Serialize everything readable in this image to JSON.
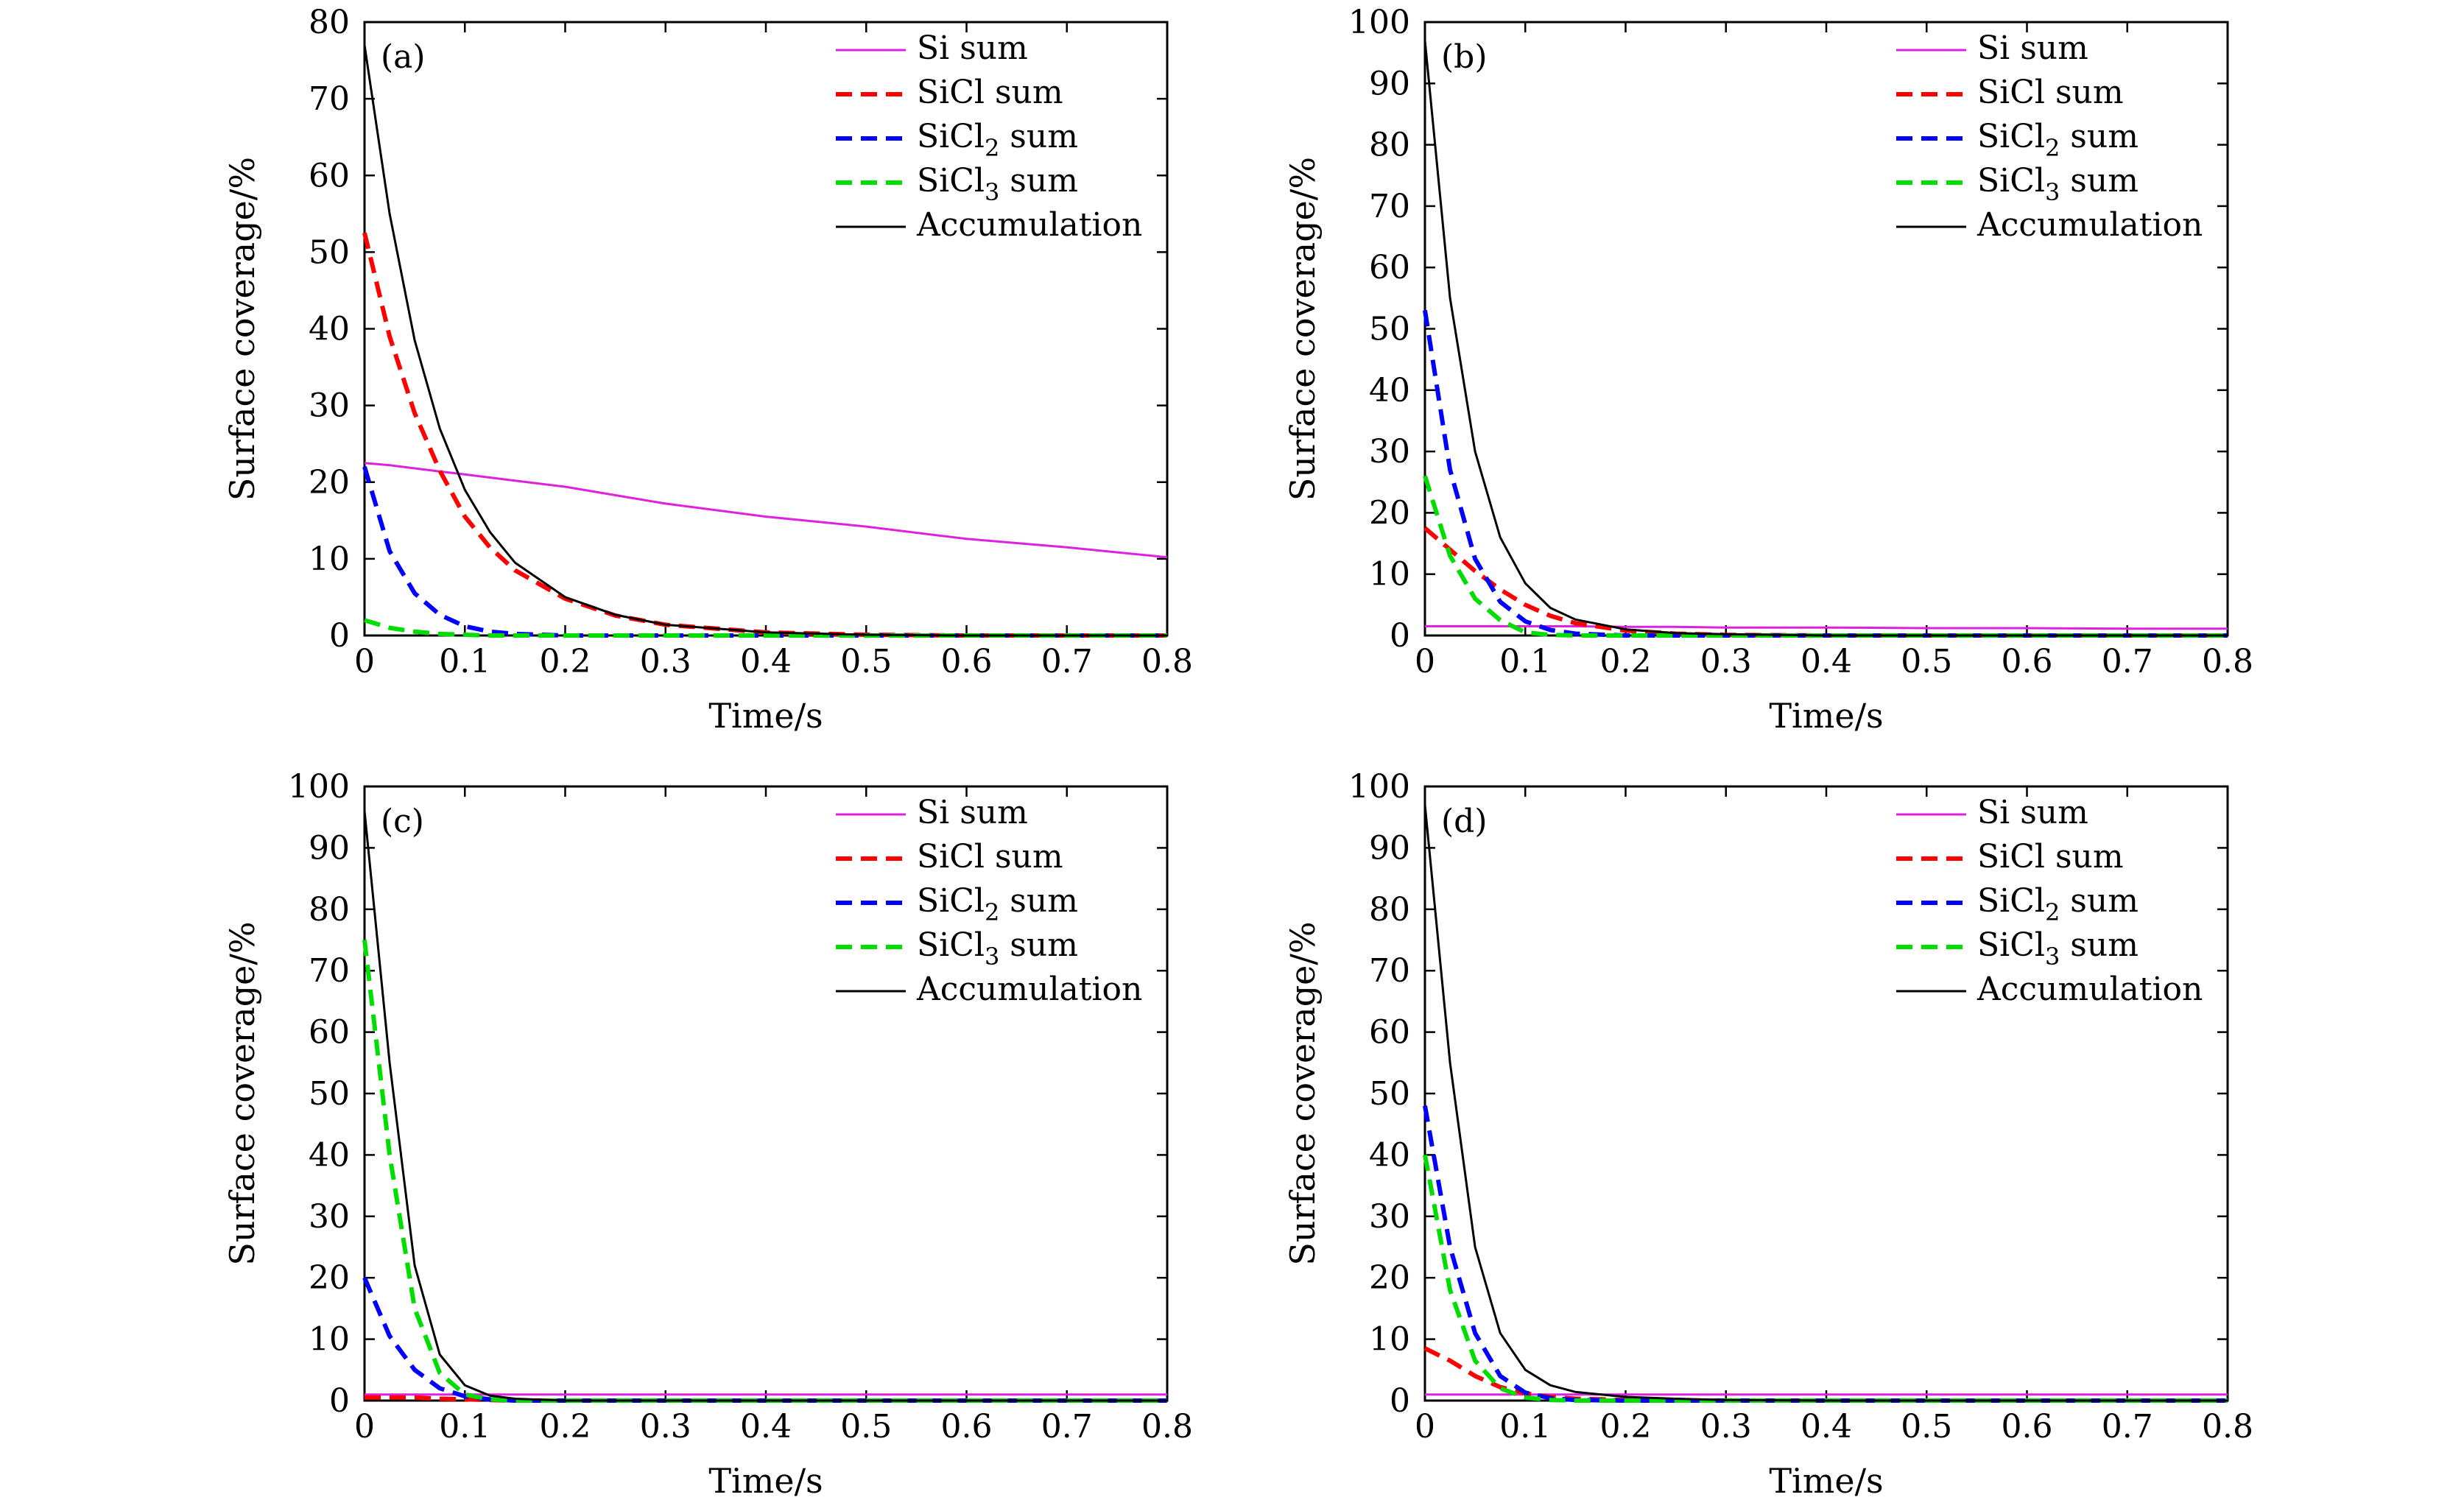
{
  "figure": {
    "background": "#ffffff"
  },
  "series_styles": [
    {
      "key": "si",
      "color": "#e020e0",
      "dash": "solid",
      "width": 3
    },
    {
      "key": "sicl",
      "color": "#ff0000",
      "dash": "dashed",
      "width": 6
    },
    {
      "key": "sicl2",
      "color": "#0000ff",
      "dash": "dashed",
      "width": 6
    },
    {
      "key": "sicl3",
      "color": "#00dd00",
      "dash": "dashed",
      "width": 6
    },
    {
      "key": "acc",
      "color": "#000000",
      "dash": "solid",
      "width": 3
    }
  ],
  "legend": [
    {
      "prefix": "Si sum",
      "sub": "",
      "suffix": ""
    },
    {
      "prefix": "SiCl sum",
      "sub": "",
      "suffix": ""
    },
    {
      "prefix": "SiCl",
      "sub": "2",
      "suffix": " sum"
    },
    {
      "prefix": "SiCl",
      "sub": "3",
      "suffix": " sum"
    },
    {
      "prefix": "Accumulation",
      "sub": "",
      "suffix": ""
    }
  ],
  "chart_data": [
    {
      "type": "line",
      "panel": "(a)",
      "xlabel": "Time/s",
      "ylabel": "Surface coverage/%",
      "xlim": [
        0,
        0.8
      ],
      "ylim": [
        0,
        80
      ],
      "xticks": [
        "0",
        "0.1",
        "0.2",
        "0.3",
        "0.4",
        "0.5",
        "0.6",
        "0.7",
        "0.8"
      ],
      "yticks": [
        "0",
        "10",
        "20",
        "30",
        "40",
        "50",
        "60",
        "70",
        "80"
      ],
      "legend_position": "top-right",
      "x": [
        0,
        0.025,
        0.05,
        0.075,
        0.1,
        0.125,
        0.15,
        0.2,
        0.25,
        0.3,
        0.4,
        0.5,
        0.6,
        0.7,
        0.8
      ],
      "series": [
        {
          "name": "Si sum",
          "values": [
            22.5,
            22.2,
            21.8,
            21.4,
            21.0,
            20.6,
            20.2,
            19.4,
            18.3,
            17.2,
            15.5,
            14.2,
            12.6,
            11.5,
            10.2
          ]
        },
        {
          "name": "SiCl sum",
          "values": [
            52.5,
            39.0,
            29.0,
            21.5,
            15.5,
            11.5,
            8.5,
            4.8,
            2.6,
            1.4,
            0.4,
            0.1,
            0,
            0,
            0
          ]
        },
        {
          "name": "SiCl2 sum",
          "values": [
            22.0,
            11.0,
            5.5,
            2.7,
            1.2,
            0.5,
            0.2,
            0,
            0,
            0,
            0,
            0,
            0,
            0,
            0
          ]
        },
        {
          "name": "SiCl3 sum",
          "values": [
            2.0,
            1.0,
            0.5,
            0.2,
            0.1,
            0,
            0,
            0,
            0,
            0,
            0,
            0,
            0,
            0,
            0
          ]
        },
        {
          "name": "Accumulation",
          "values": [
            77.0,
            55.0,
            38.5,
            27.0,
            19.0,
            13.5,
            9.5,
            5.0,
            2.7,
            1.4,
            0.4,
            0.1,
            0,
            0,
            0
          ]
        }
      ]
    },
    {
      "type": "line",
      "panel": "(b)",
      "xlabel": "Time/s",
      "ylabel": "Surface coverage/%",
      "xlim": [
        0,
        0.8
      ],
      "ylim": [
        0,
        100
      ],
      "xticks": [
        "0",
        "0.1",
        "0.2",
        "0.3",
        "0.4",
        "0.5",
        "0.6",
        "0.7",
        "0.8"
      ],
      "yticks": [
        "0",
        "10",
        "20",
        "30",
        "40",
        "50",
        "60",
        "70",
        "80",
        "90",
        "100"
      ],
      "legend_position": "top-right",
      "x": [
        0,
        0.025,
        0.05,
        0.075,
        0.1,
        0.125,
        0.15,
        0.2,
        0.25,
        0.3,
        0.4,
        0.5,
        0.6,
        0.7,
        0.8
      ],
      "series": [
        {
          "name": "Si sum",
          "values": [
            1.5,
            1.5,
            1.5,
            1.5,
            1.5,
            1.5,
            1.5,
            1.4,
            1.4,
            1.3,
            1.3,
            1.2,
            1.2,
            1.1,
            1.1
          ]
        },
        {
          "name": "SiCl sum",
          "values": [
            17.5,
            14.0,
            10.5,
            7.5,
            5.0,
            3.2,
            2.0,
            0.8,
            0.3,
            0.1,
            0,
            0,
            0,
            0,
            0
          ]
        },
        {
          "name": "SiCl2 sum",
          "values": [
            53.0,
            27.0,
            12.5,
            5.5,
            2.3,
            0.9,
            0.3,
            0,
            0,
            0,
            0,
            0,
            0,
            0,
            0
          ]
        },
        {
          "name": "SiCl3 sum",
          "values": [
            26.0,
            13.0,
            6.0,
            2.5,
            0.5,
            0.1,
            0,
            0,
            0,
            0,
            0,
            0,
            0,
            0,
            0
          ]
        },
        {
          "name": "Accumulation",
          "values": [
            97.0,
            55.0,
            30.0,
            16.0,
            8.5,
            4.5,
            2.6,
            1.0,
            0.4,
            0.2,
            0,
            0,
            0,
            0,
            0
          ]
        }
      ]
    },
    {
      "type": "line",
      "panel": "(c)",
      "xlabel": "Time/s",
      "ylabel": "Surface coverage/%",
      "xlim": [
        0,
        0.8
      ],
      "ylim": [
        0,
        100
      ],
      "xticks": [
        "0",
        "0.1",
        "0.2",
        "0.3",
        "0.4",
        "0.5",
        "0.6",
        "0.7",
        "0.8"
      ],
      "yticks": [
        "0",
        "10",
        "20",
        "30",
        "40",
        "50",
        "60",
        "70",
        "80",
        "90",
        "100"
      ],
      "legend_position": "top-right",
      "x": [
        0,
        0.025,
        0.05,
        0.075,
        0.1,
        0.125,
        0.15,
        0.2,
        0.25,
        0.3,
        0.4,
        0.5,
        0.6,
        0.7,
        0.8
      ],
      "series": [
        {
          "name": "Si sum",
          "values": [
            1.0,
            1.0,
            1.0,
            1.0,
            1.0,
            1.0,
            1.0,
            1.0,
            1.0,
            1.0,
            1.0,
            1.0,
            1.0,
            1.0,
            1.0
          ]
        },
        {
          "name": "SiCl sum",
          "values": [
            0.5,
            0.5,
            0.5,
            0.3,
            0.2,
            0.1,
            0,
            0,
            0,
            0,
            0,
            0,
            0,
            0,
            0
          ]
        },
        {
          "name": "SiCl2 sum",
          "values": [
            20.0,
            10.5,
            5.0,
            2.0,
            0.7,
            0.2,
            0,
            0,
            0,
            0,
            0,
            0,
            0,
            0,
            0
          ]
        },
        {
          "name": "SiCl3 sum",
          "values": [
            75.0,
            40.0,
            15.0,
            4.5,
            1.0,
            0.2,
            0,
            0,
            0,
            0,
            0,
            0,
            0,
            0,
            0
          ]
        },
        {
          "name": "Accumulation",
          "values": [
            96.0,
            55.0,
            22.0,
            7.5,
            2.5,
            0.8,
            0.3,
            0,
            0,
            0,
            0,
            0,
            0,
            0,
            0
          ]
        }
      ]
    },
    {
      "type": "line",
      "panel": "(d)",
      "xlabel": "Time/s",
      "ylabel": "Surface coverage/%",
      "xlim": [
        0,
        0.8
      ],
      "ylim": [
        0,
        100
      ],
      "xticks": [
        "0",
        "0.1",
        "0.2",
        "0.3",
        "0.4",
        "0.5",
        "0.6",
        "0.7",
        "0.8"
      ],
      "yticks": [
        "0",
        "10",
        "20",
        "30",
        "40",
        "50",
        "60",
        "70",
        "80",
        "90",
        "100"
      ],
      "legend_position": "top-right",
      "x": [
        0,
        0.025,
        0.05,
        0.075,
        0.1,
        0.125,
        0.15,
        0.2,
        0.25,
        0.3,
        0.4,
        0.5,
        0.6,
        0.7,
        0.8
      ],
      "series": [
        {
          "name": "Si sum",
          "values": [
            1.0,
            1.0,
            1.0,
            1.0,
            1.0,
            1.0,
            1.0,
            1.0,
            1.0,
            1.0,
            1.0,
            1.0,
            1.0,
            1.0,
            1.0
          ]
        },
        {
          "name": "SiCl sum",
          "values": [
            8.5,
            6.5,
            4.0,
            2.2,
            1.2,
            0.6,
            0.3,
            0.1,
            0,
            0,
            0,
            0,
            0,
            0,
            0
          ]
        },
        {
          "name": "SiCl2 sum",
          "values": [
            48.0,
            25.0,
            11.0,
            4.0,
            1.3,
            0.4,
            0.1,
            0,
            0,
            0,
            0,
            0,
            0,
            0,
            0
          ]
        },
        {
          "name": "SiCl3 sum",
          "values": [
            40.0,
            18.0,
            6.5,
            2.0,
            0.5,
            0.1,
            0,
            0,
            0,
            0,
            0,
            0,
            0,
            0,
            0
          ]
        },
        {
          "name": "Accumulation",
          "values": [
            97.0,
            55.0,
            25.0,
            11.0,
            5.0,
            2.5,
            1.4,
            0.6,
            0.3,
            0.1,
            0,
            0,
            0,
            0,
            0
          ]
        }
      ]
    }
  ]
}
